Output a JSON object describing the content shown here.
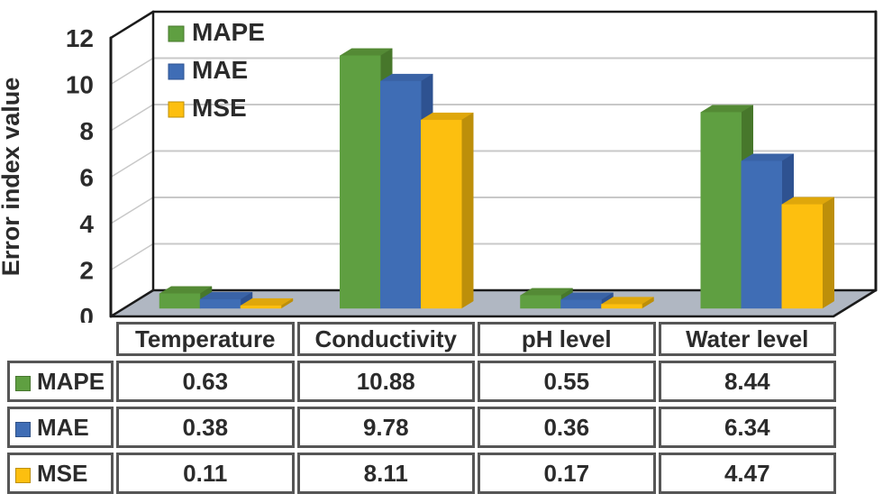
{
  "chart_data": {
    "type": "bar",
    "variant": "3d-clustered-column",
    "title": "",
    "xlabel": "",
    "ylabel": "Error index value",
    "ylim": [
      0,
      12
    ],
    "yticks": [
      0,
      2,
      4,
      6,
      8,
      10,
      12
    ],
    "grid": true,
    "legend_position": "top-left-inside",
    "legend": [
      "MAPE",
      "MAE",
      "MSE"
    ],
    "categories": [
      "Temperature",
      "Conductivity",
      "pH level",
      "Water level"
    ],
    "series": [
      {
        "name": "MAPE",
        "color": "#5F9F41",
        "color_top": "#548A35",
        "color_side": "#47772B",
        "values": [
          0.63,
          10.88,
          0.55,
          8.44
        ]
      },
      {
        "name": "MAE",
        "color": "#3F6DB5",
        "color_top": "#3A63A6",
        "color_side": "#2E5291",
        "values": [
          0.38,
          9.78,
          0.36,
          6.34
        ]
      },
      {
        "name": "MSE",
        "color": "#FDBF0F",
        "color_top": "#DFA70B",
        "color_side": "#BD8F0A",
        "values": [
          0.11,
          8.11,
          0.17,
          4.47
        ]
      }
    ],
    "colors": {
      "wall": "#FFFFFF",
      "floor": "#B0B7C2",
      "gridline": "#C8C8C8",
      "frame": "#1B1B1B",
      "text": "#2B2B2B",
      "table_border": "#565656"
    }
  }
}
